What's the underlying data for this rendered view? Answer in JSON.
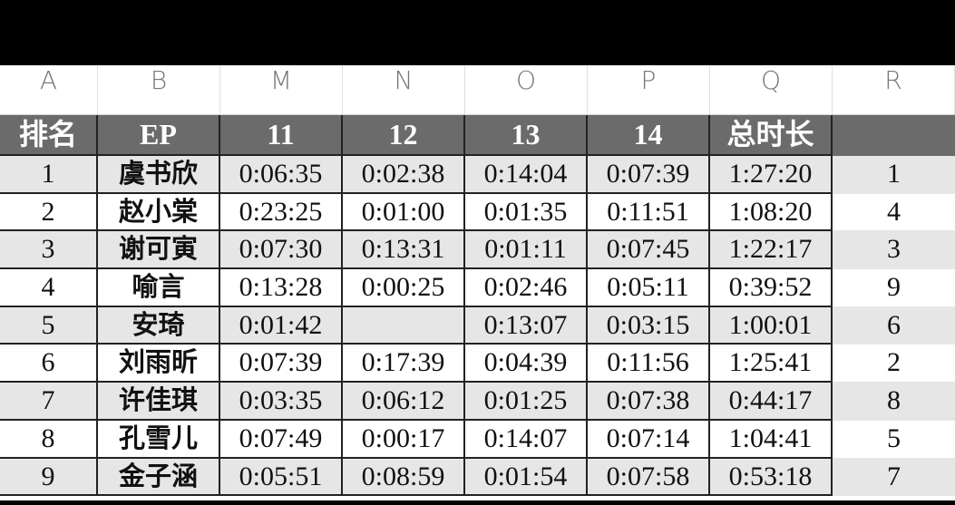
{
  "column_letters": [
    "A",
    "B",
    "M",
    "N",
    "O",
    "P",
    "Q",
    "R"
  ],
  "header": [
    "排名",
    "EP",
    "11",
    "12",
    "13",
    "14",
    "总时长",
    ""
  ],
  "rows": [
    [
      "1",
      "虞书欣",
      "0:06:35",
      "0:02:38",
      "0:14:04",
      "0:07:39",
      "1:27:20",
      "1"
    ],
    [
      "2",
      "赵小棠",
      "0:23:25",
      "0:01:00",
      "0:01:35",
      "0:11:51",
      "1:08:20",
      "4"
    ],
    [
      "3",
      "谢可寅",
      "0:07:30",
      "0:13:31",
      "0:01:11",
      "0:07:45",
      "1:22:17",
      "3"
    ],
    [
      "4",
      "喻言",
      "0:13:28",
      "0:00:25",
      "0:02:46",
      "0:05:11",
      "0:39:52",
      "9"
    ],
    [
      "5",
      "安琦",
      "0:01:42",
      "",
      "0:13:07",
      "0:03:15",
      "1:00:01",
      "6"
    ],
    [
      "6",
      "刘雨昕",
      "0:07:39",
      "0:17:39",
      "0:04:39",
      "0:11:56",
      "1:25:41",
      "2"
    ],
    [
      "7",
      "许佳琪",
      "0:03:35",
      "0:06:12",
      "0:01:25",
      "0:07:38",
      "0:44:17",
      "8"
    ],
    [
      "8",
      "孔雪儿",
      "0:07:49",
      "0:00:17",
      "0:14:07",
      "0:07:14",
      "1:04:41",
      "5"
    ],
    [
      "9",
      "金子涵",
      "0:05:51",
      "0:08:59",
      "0:01:54",
      "0:07:58",
      "0:53:18",
      "7"
    ]
  ],
  "colors": {
    "header_bg": "#6b6b6b",
    "stripe": "#e6e6e6",
    "border": "#222222"
  }
}
